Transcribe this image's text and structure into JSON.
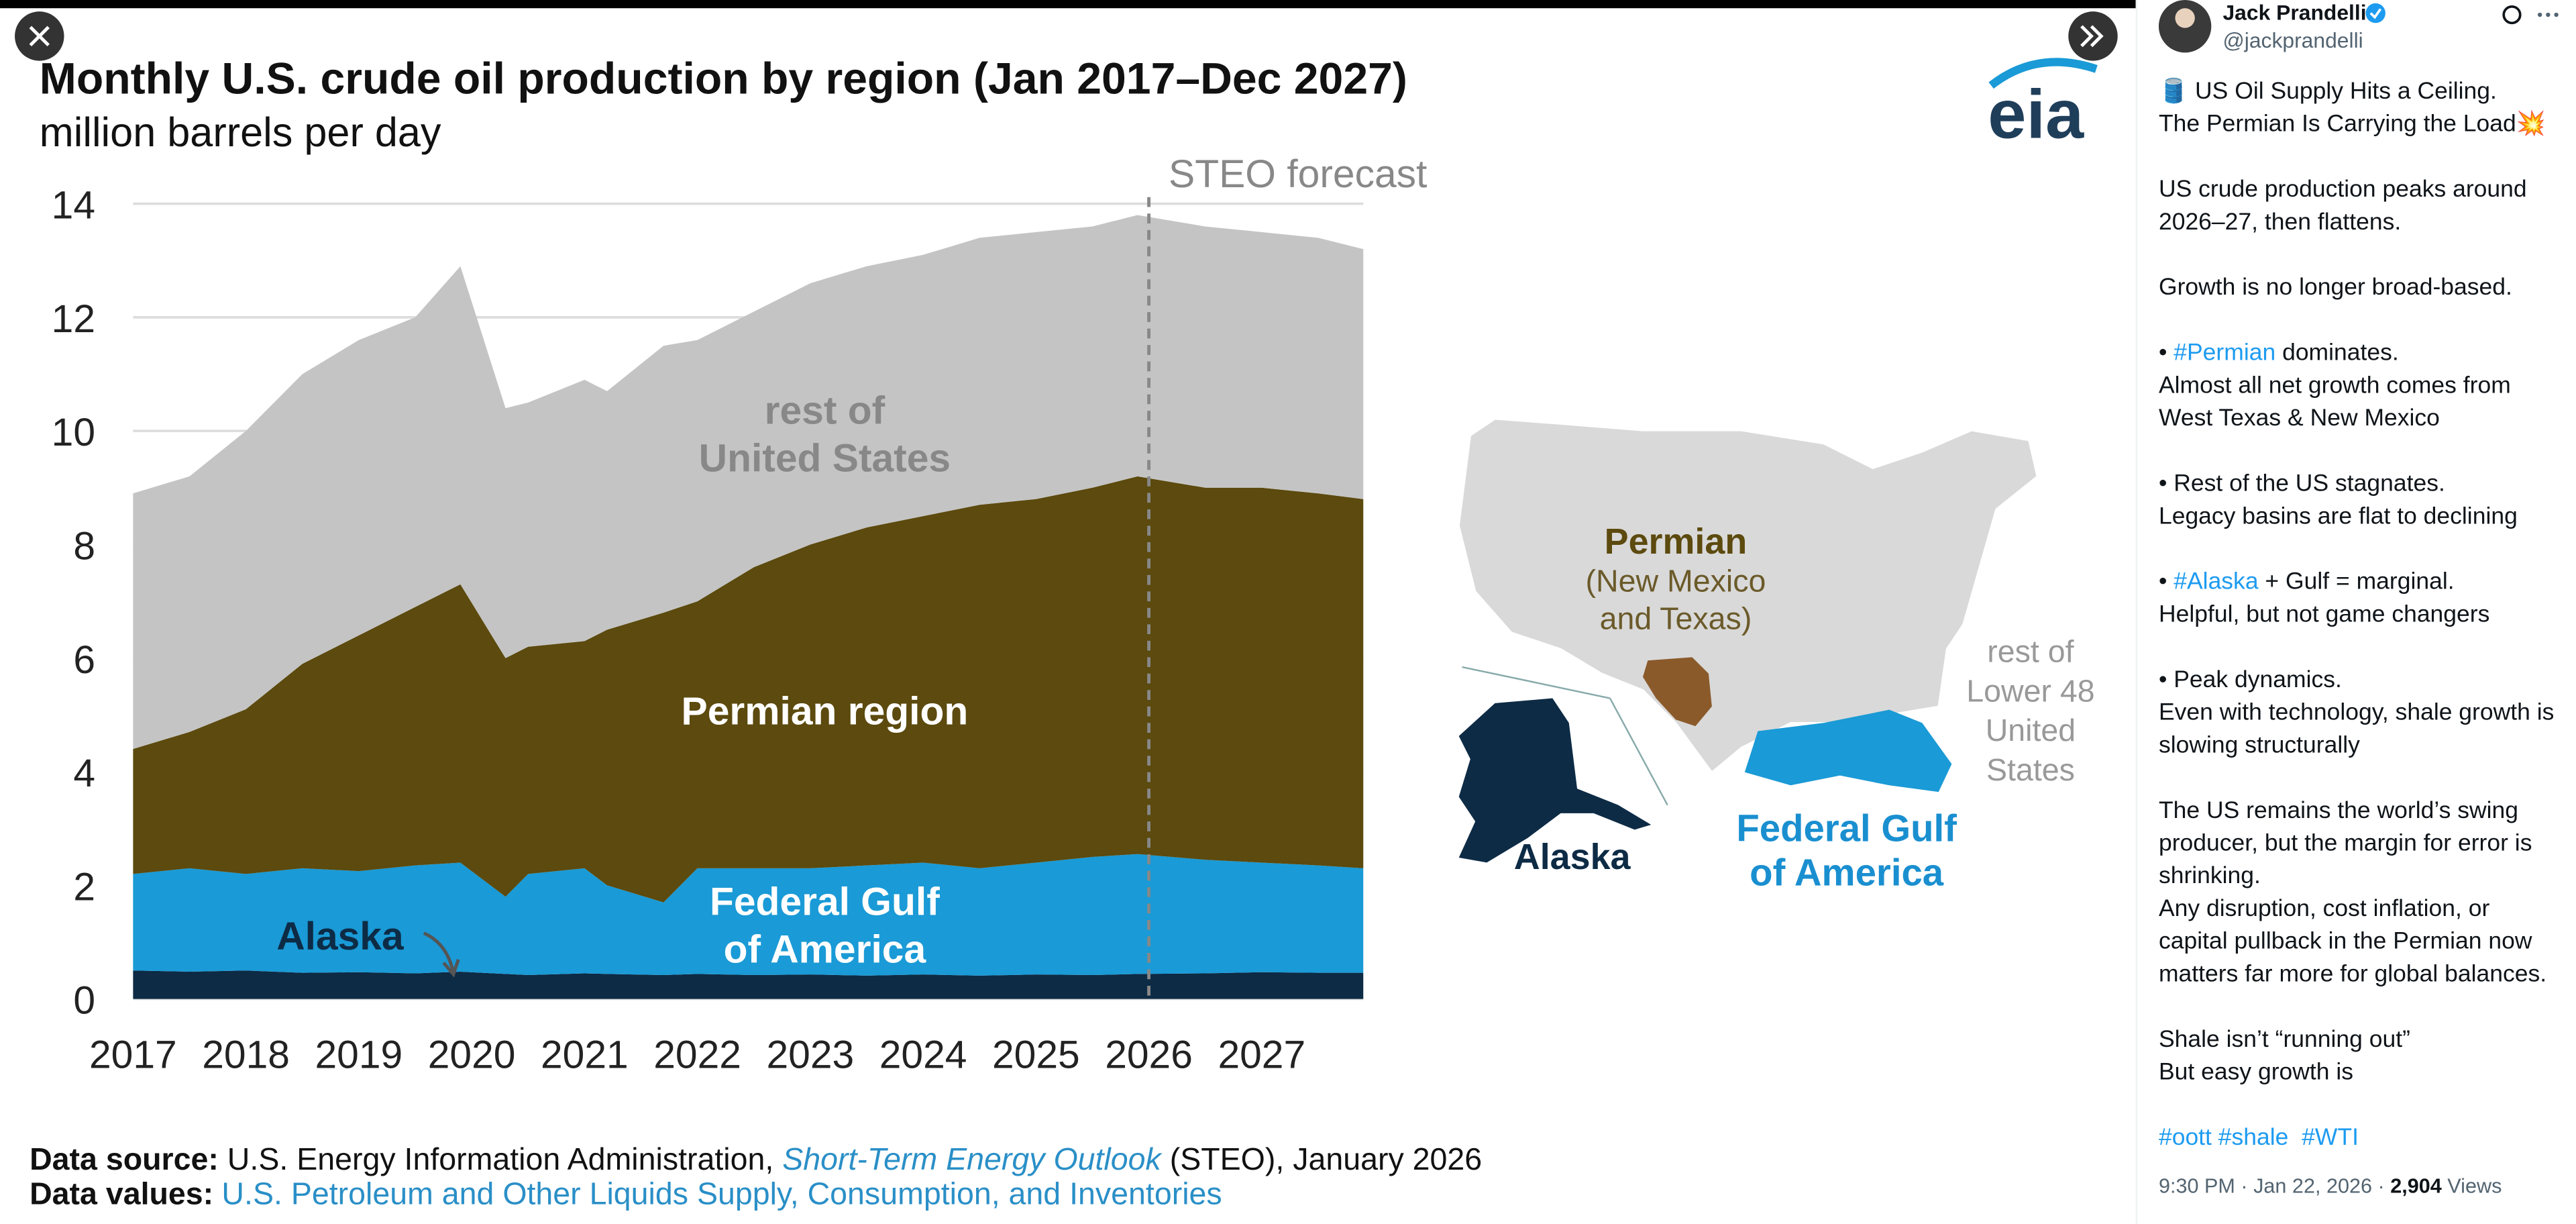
{
  "chart_data": {
    "type": "stacked_area",
    "title": "Monthly U.S. crude oil production by region (Jan 2017–Dec 2027)",
    "subtitle": "million barrels per day",
    "annotation": "STEO forecast",
    "forecast_start": 2026,
    "x": [
      2017.0,
      2017.5,
      2018.0,
      2018.5,
      2019.0,
      2019.5,
      2019.9,
      2020.3,
      2020.5,
      2021.0,
      2021.2,
      2021.7,
      2022.0,
      2022.5,
      2023.0,
      2023.5,
      2024.0,
      2024.5,
      2025.0,
      2025.5,
      2025.9,
      2026.5,
      2027.0,
      2027.5,
      2027.9
    ],
    "series": [
      {
        "label": [
          "Alaska"
        ],
        "color": "#0d2b45",
        "values": [
          0.5,
          0.48,
          0.5,
          0.46,
          0.47,
          0.45,
          0.48,
          0.44,
          0.42,
          0.45,
          0.44,
          0.42,
          0.44,
          0.42,
          0.43,
          0.41,
          0.43,
          0.41,
          0.43,
          0.42,
          0.44,
          0.45,
          0.47,
          0.46,
          0.46
        ]
      },
      {
        "label": [
          "Federal Gulf",
          "of America"
        ],
        "color": "#1a9ad6",
        "values": [
          1.7,
          1.82,
          1.7,
          1.84,
          1.78,
          1.9,
          1.92,
          1.36,
          1.78,
          1.85,
          1.56,
          1.28,
          1.86,
          1.88,
          1.87,
          1.94,
          1.97,
          1.89,
          1.97,
          2.08,
          2.11,
          2.0,
          1.93,
          1.89,
          1.84
        ]
      },
      {
        "label": [
          "Permian region"
        ],
        "color": "#5c4a0e",
        "values": [
          2.2,
          2.4,
          2.9,
          3.6,
          4.15,
          4.55,
          4.9,
          4.2,
          4.0,
          4.0,
          4.5,
          5.1,
          4.7,
          5.3,
          5.7,
          5.95,
          6.1,
          6.4,
          6.4,
          6.5,
          6.65,
          6.55,
          6.6,
          6.55,
          6.5
        ]
      },
      {
        "label": [
          "rest of",
          "United States"
        ],
        "color": "#c4c4c4",
        "values": [
          4.5,
          4.5,
          4.9,
          5.1,
          5.2,
          5.1,
          5.6,
          4.4,
          4.3,
          4.6,
          4.2,
          4.7,
          4.6,
          4.5,
          4.6,
          4.6,
          4.6,
          4.7,
          4.7,
          4.6,
          4.6,
          4.6,
          4.5,
          4.5,
          4.4
        ]
      }
    ],
    "xlim": [
      2017,
      2028
    ],
    "xticks": [
      2017,
      2018,
      2019,
      2020,
      2021,
      2022,
      2023,
      2024,
      2025,
      2026,
      2027
    ],
    "ylim": [
      0,
      14
    ],
    "yticks": [
      0,
      2,
      4,
      6,
      8,
      10,
      12,
      14
    ],
    "grid": true,
    "logo": "eia",
    "source": {
      "label": "Data source:",
      "text": "U.S. Energy Information Administration, ",
      "link": "Short-Term Energy Outlook",
      "tail": " (STEO), January 2026"
    },
    "values_source": {
      "label": "Data values:",
      "link": "U.S. Petroleum and Other Liquids Supply, Consumption, and Inventories"
    }
  },
  "map": {
    "permian": [
      "Permian",
      "(New Mexico",
      "and Texas)"
    ],
    "rest": [
      "rest of",
      "Lower 48",
      "United",
      "States"
    ],
    "alaska": "Alaska",
    "gulf": [
      "Federal Gulf",
      "of America"
    ]
  },
  "tweet": {
    "name": "Jack Prandelli",
    "handle": "@jackprandelli",
    "paragraphs": [
      [
        [
          "🛢️ US Oil Supply Hits a Ceiling."
        ],
        [
          "The Permian Is Carrying the Load💥"
        ]
      ],
      [
        [
          "US crude production peaks around"
        ],
        [
          "2026–27, then flattens."
        ]
      ],
      [
        [
          "Growth is no longer broad-based."
        ]
      ],
      [
        [
          "• ",
          "#Permian",
          " dominates."
        ],
        [
          "Almost all net growth comes from"
        ],
        [
          "West Texas & New Mexico"
        ]
      ],
      [
        [
          "• Rest of the US stagnates."
        ],
        [
          "Legacy basins are flat to declining"
        ]
      ],
      [
        [
          "• ",
          "#Alaska",
          " + Gulf = marginal."
        ],
        [
          "Helpful, but not game changers"
        ]
      ],
      [
        [
          "• Peak dynamics."
        ],
        [
          "Even with technology, shale growth is"
        ],
        [
          "slowing structurally"
        ]
      ],
      [
        [
          "The US remains the world’s swing"
        ],
        [
          "producer, but the margin for error is"
        ],
        [
          "shrinking."
        ],
        [
          "Any disruption, cost inflation, or"
        ],
        [
          "capital pullback in the Permian now"
        ],
        [
          "matters far more for global balances."
        ]
      ],
      [
        [
          "Shale isn’t “running out”"
        ],
        [
          "But easy growth is"
        ]
      ],
      [
        [
          "#oott",
          " ",
          "#shale",
          "  ",
          "#WTI"
        ]
      ]
    ],
    "footer": [
      "9:30 PM · Jan 22, 2026 · ",
      "2,904",
      " Views"
    ]
  }
}
